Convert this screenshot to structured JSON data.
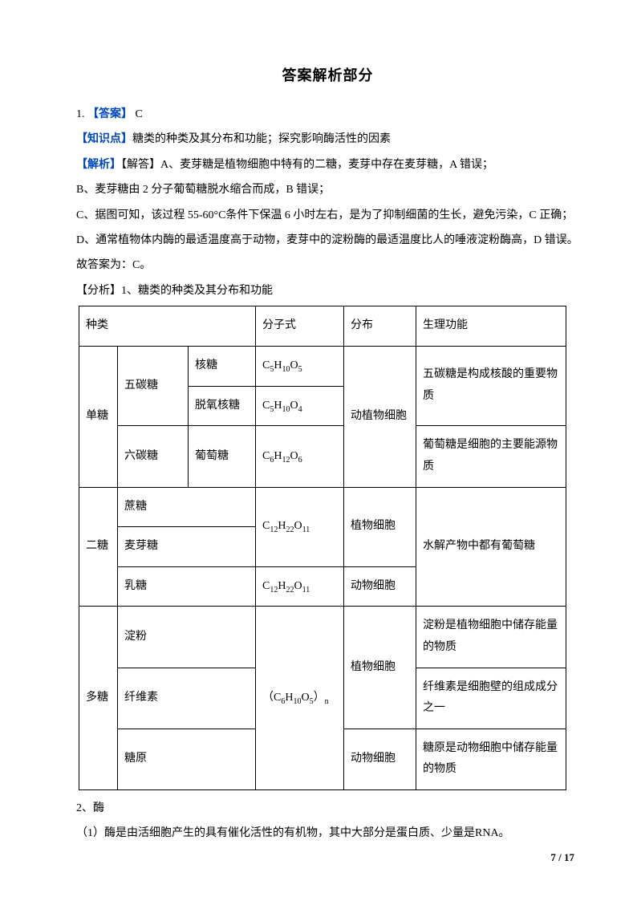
{
  "title": "答案解析部分",
  "question_number": "1.",
  "answer_label": "【答案】",
  "answer_value": "C",
  "kp_label": "【知识点】",
  "kp_text": "糖类的种类及其分布和功能；探究影响酶活性的因素",
  "jx_label": "【解析】",
  "jx_label2": "【解答】",
  "optA": "A、麦芽糖是植物细胞中特有的二糖，麦芽中存在麦芽糖，A 错误；",
  "optB": "B、麦芽糖由 2 分子葡萄糖脱水缩合而成，B 错误；",
  "optC": "C、据图可知，该过程 55-60°C条件下保温 6 小时左右，是为了抑制细菌的生长，避免污染，C 正确；",
  "optD": "D、通常植物体内酶的最适温度高于动物，麦芽中的淀粉酶的最适温度比人的唾液淀粉酶高，D 错误。",
  "conclusion": "故答案为：C。",
  "analysis_label": "【分析】",
  "analysis_intro": "1、糖类的种类及其分布和功能",
  "table": {
    "header": {
      "c1": "种类",
      "c4": "分子式",
      "c5": "分布",
      "c6": "生理功能"
    },
    "mono": {
      "cat": "单糖",
      "pentose": "五碳糖",
      "hexose": "六碳糖",
      "ribose": "核糖",
      "deoxy": "脱氧核糖",
      "glucose": "葡萄糖",
      "f_ribose_a": "C",
      "f_ribose_b": "5",
      "f_ribose_c": "H",
      "f_ribose_d": "10",
      "f_ribose_e": "O",
      "f_ribose_f": "5",
      "f_deoxy_a": "C",
      "f_deoxy_b": "5",
      "f_deoxy_c": "H",
      "f_deoxy_d": "10",
      "f_deoxy_e": "O",
      "f_deoxy_f": "4",
      "f_glu_a": "C",
      "f_glu_b": "6",
      "f_glu_c": "H",
      "f_glu_d": "12",
      "f_glu_e": "O",
      "f_glu_f": "6",
      "dist": "动植物细胞",
      "func_pentose": "五碳糖是构成核酸的重要物质",
      "func_glucose": "葡萄糖是细胞的主要能源物质"
    },
    "di": {
      "cat": "二糖",
      "sucrose": "蔗糖",
      "maltose": "麦芽糖",
      "lactose": "乳糖",
      "f_a": "C",
      "f_b": "12",
      "f_c": "H",
      "f_d": "22",
      "f_e": "O",
      "f_f": "11",
      "dist_plant": "植物细胞",
      "dist_animal": "动物细胞",
      "func": "水解产物中都有葡萄糖"
    },
    "poly": {
      "cat": "多糖",
      "starch": "淀粉",
      "cellulose": "纤维素",
      "glycogen": "糖原",
      "f_open": "（C",
      "f_b": "6",
      "f_c": "H",
      "f_d": "10",
      "f_e": "O",
      "f_f": "5",
      "f_close": "）",
      "f_n": "n",
      "dist_plant": "植物细胞",
      "dist_animal": "动物细胞",
      "func_starch": "淀粉是植物细胞中储存能量的物质",
      "func_cell": "纤维素是细胞壁的组成成分之一",
      "func_gly": "糖原是动物细胞中储存能量的物质"
    }
  },
  "section2": "2、酶",
  "enzyme_line": "（1）酶是由活细胞产生的具有催化活性的有机物，其中大部分是蛋白质、少量是RNA。",
  "page_current": "7",
  "page_sep": " / ",
  "page_total": "17"
}
